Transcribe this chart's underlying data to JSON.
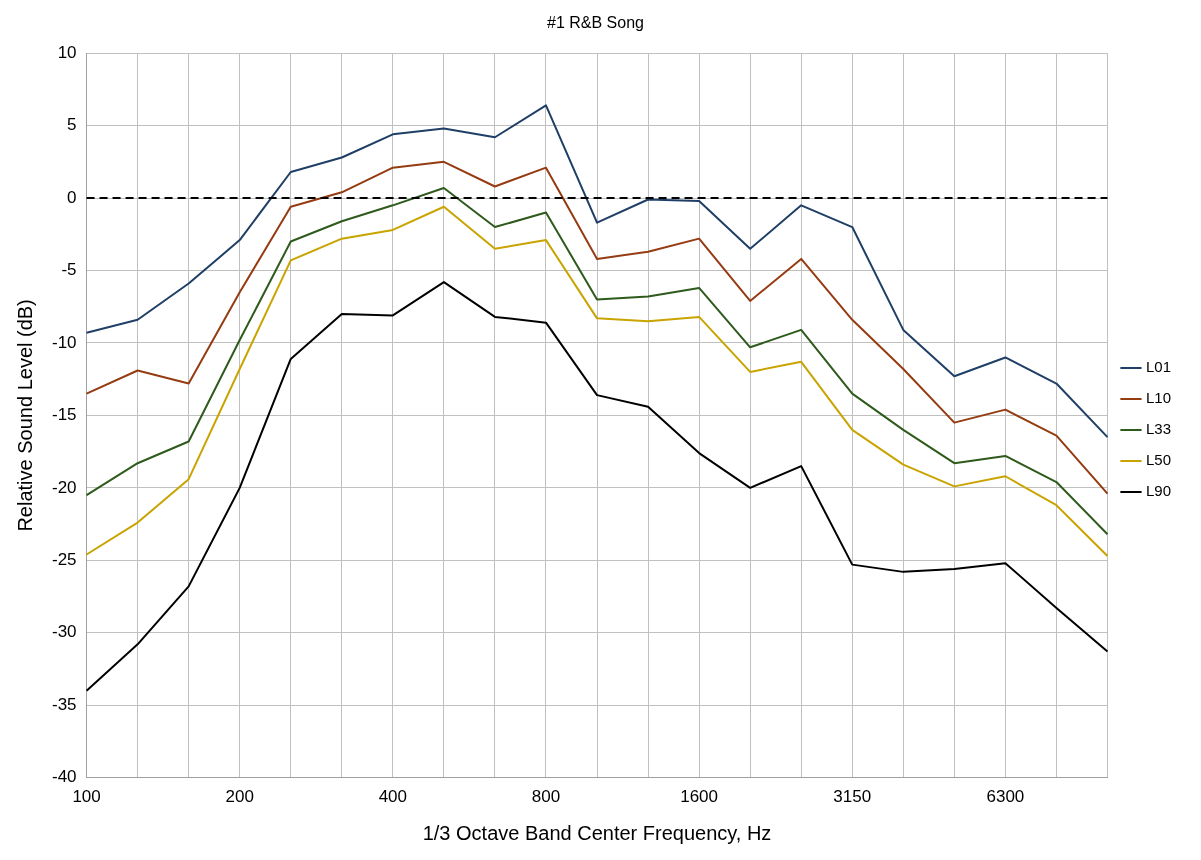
{
  "chart_data": {
    "type": "line",
    "title": "#1 R&B Song",
    "xlabel": "1/3 Octave Band Center Frequency, Hz",
    "ylabel": "Relative Sound Level (dB)",
    "categories": [
      "100",
      null,
      null,
      "200",
      null,
      null,
      "400",
      null,
      null,
      "800",
      null,
      null,
      "1600",
      null,
      null,
      "3150",
      null,
      null,
      "6300",
      null,
      null
    ],
    "series": [
      {
        "name": "L01",
        "color": "#1f3f66",
        "values": [
          -9.3,
          -8.4,
          -5.9,
          -2.9,
          1.8,
          2.8,
          4.4,
          4.8,
          4.2,
          6.4,
          -1.7,
          -0.1,
          -0.2,
          -3.5,
          -0.5,
          -2.0,
          -9.1,
          -12.3,
          -11.0,
          -12.8,
          -16.5
        ]
      },
      {
        "name": "L10",
        "color": "#953b12",
        "values": [
          -13.5,
          -11.9,
          -12.8,
          -6.5,
          -0.6,
          0.4,
          2.1,
          2.5,
          0.8,
          2.1,
          -4.2,
          -3.7,
          -2.8,
          -7.1,
          -4.2,
          -8.4,
          -11.8,
          -15.5,
          -14.6,
          -16.4,
          -20.4
        ]
      },
      {
        "name": "L33",
        "color": "#2e5a1c",
        "values": [
          -20.5,
          -18.3,
          -16.8,
          -9.8,
          -3.0,
          -1.6,
          -0.5,
          0.7,
          -2.0,
          -1.0,
          -7.0,
          -6.8,
          -6.2,
          -10.3,
          -9.1,
          -13.5,
          -16.0,
          -18.3,
          -17.8,
          -19.6,
          -23.2
        ]
      },
      {
        "name": "L50",
        "color": "#c9a400",
        "values": [
          -24.6,
          -22.4,
          -19.4,
          -11.8,
          -4.3,
          -2.8,
          -2.2,
          -0.6,
          -3.5,
          -2.9,
          -8.3,
          -8.5,
          -8.2,
          -12.0,
          -11.3,
          -16.0,
          -18.4,
          -19.9,
          -19.2,
          -21.2,
          -24.7
        ]
      },
      {
        "name": "L90",
        "color": "#000000",
        "values": [
          -34.0,
          -30.8,
          -26.8,
          -20.0,
          -11.1,
          -8.0,
          -8.1,
          -5.8,
          -8.2,
          -8.6,
          -13.6,
          -14.4,
          -17.6,
          -20.0,
          -18.5,
          -25.3,
          -25.8,
          -25.6,
          -25.2,
          -28.3,
          -31.3
        ]
      }
    ],
    "ylim": [
      -40,
      10
    ],
    "yticks": [
      -40,
      -35,
      -30,
      -25,
      -20,
      -15,
      -10,
      -5,
      0,
      5,
      10
    ],
    "ref_lines": [
      {
        "axis": "y",
        "value": 0,
        "color": "#000000",
        "line_style": "dashed"
      }
    ],
    "grid": true,
    "legend": "right",
    "marker": "none",
    "line_style": "solid"
  }
}
